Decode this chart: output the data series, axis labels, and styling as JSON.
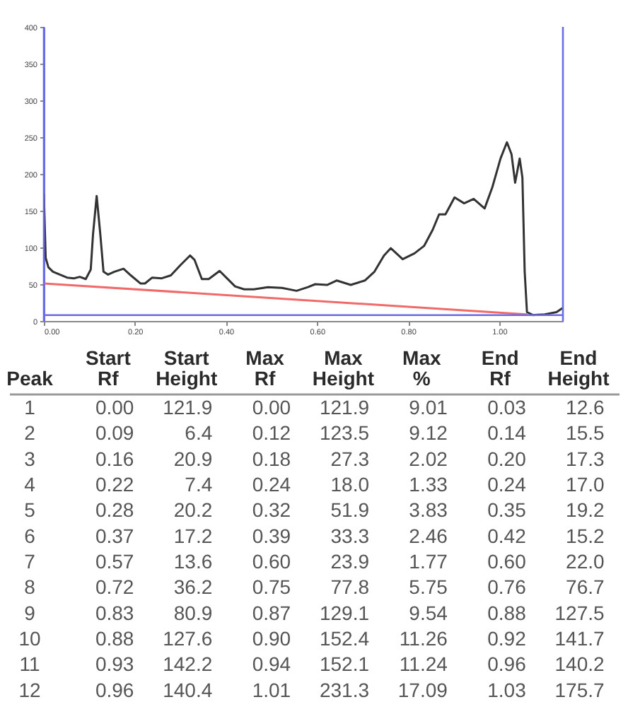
{
  "chart_data": [
    {
      "type": "line",
      "xlim": [
        0,
        1.14
      ],
      "ylim": [
        0,
        400
      ],
      "xticks": [
        {
          "value": 0,
          "label": "0.00"
        },
        {
          "value": 0.2,
          "label": "0.20"
        },
        {
          "value": 0.4,
          "label": "0.40"
        },
        {
          "value": 0.6,
          "label": "0.60"
        },
        {
          "value": 0.8,
          "label": "0.80"
        },
        {
          "value": 1,
          "label": "1.00"
        }
      ],
      "yticks": [
        0,
        50,
        100,
        150,
        200,
        250,
        300,
        350,
        400
      ],
      "series": [
        {
          "color": "#333333",
          "x": [
            0,
            0.004,
            0.01,
            0.02,
            0.035,
            0.051,
            0.066,
            0.079,
            0.092,
            0.103,
            0.108,
            0.116,
            0.124,
            0.131,
            0.141,
            0.155,
            0.175,
            0.191,
            0.212,
            0.222,
            0.238,
            0.259,
            0.279,
            0.3,
            0.321,
            0.331,
            0.347,
            0.362,
            0.386,
            0.399,
            0.42,
            0.44,
            0.461,
            0.492,
            0.523,
            0.555,
            0.58,
            0.596,
            0.622,
            0.643,
            0.674,
            0.705,
            0.726,
            0.747,
            0.762,
            0.788,
            0.814,
            0.835,
            0.854,
            0.868,
            0.882,
            0.902,
            0.923,
            0.944,
            0.968,
            0.985,
            1.003,
            1.017,
            1.027,
            1.035,
            1.045,
            1.051,
            1.056,
            1.061,
            1.074,
            1.1,
            1.126,
            1.138
          ],
          "values": [
            172,
            86,
            73,
            67,
            63,
            59,
            58,
            60,
            57,
            70,
            118,
            170,
            118,
            67,
            63,
            67,
            71,
            62,
            51,
            51,
            59,
            58,
            62,
            76,
            89,
            83,
            57,
            57,
            68,
            60,
            47,
            43,
            43,
            46,
            45,
            41,
            46,
            50,
            49,
            55,
            49,
            55,
            67,
            89,
            99,
            84,
            92,
            102,
            124,
            145,
            145,
            168,
            160,
            166,
            153,
            182,
            221,
            243,
            227,
            188,
            221,
            195,
            67,
            12,
            8,
            9,
            12,
            17
          ]
        },
        {
          "type": "line",
          "color": "#f06a6a",
          "x": [
            0,
            1.06
          ],
          "values": [
            51,
            9
          ]
        }
      ],
      "ref_lines": [
        {
          "axis": "x",
          "value": 0,
          "color": "#6b6be8"
        },
        {
          "axis": "x",
          "value": 1.14,
          "color": "#6b6be8"
        },
        {
          "axis": "y",
          "value": 8,
          "color": "#6b6be8"
        }
      ]
    },
    {
      "type": "heatmap",
      "ylabel": "Peak",
      "categories": [
        "Start Rf",
        "Start Height",
        "Max Rf",
        "Max Height",
        "Max %",
        "End Rf",
        "End Height"
      ],
      "y_categories": [
        "1",
        "2",
        "3",
        "4",
        "5",
        "6",
        "7",
        "8",
        "9",
        "10",
        "11",
        "12"
      ],
      "cells": [
        [
          0.0,
          121.9,
          0.0,
          121.9,
          9.01,
          0.03,
          12.6
        ],
        [
          0.09,
          6.4,
          0.12,
          123.5,
          9.12,
          0.14,
          15.5
        ],
        [
          0.16,
          20.9,
          0.18,
          27.3,
          2.02,
          0.2,
          17.3
        ],
        [
          0.22,
          7.4,
          0.24,
          18.0,
          1.33,
          0.24,
          17.0
        ],
        [
          0.28,
          20.2,
          0.32,
          51.9,
          3.83,
          0.35,
          19.2
        ],
        [
          0.37,
          17.2,
          0.39,
          33.3,
          2.46,
          0.42,
          15.2
        ],
        [
          0.57,
          13.6,
          0.6,
          23.9,
          1.77,
          0.6,
          22.0
        ],
        [
          0.72,
          36.2,
          0.75,
          77.8,
          5.75,
          0.76,
          76.7
        ],
        [
          0.83,
          80.9,
          0.87,
          129.1,
          9.54,
          0.88,
          127.5
        ],
        [
          0.88,
          127.6,
          0.9,
          152.4,
          11.26,
          0.92,
          141.7
        ],
        [
          0.93,
          142.2,
          0.94,
          152.1,
          11.24,
          0.96,
          140.2
        ],
        [
          0.96,
          140.4,
          1.01,
          231.3,
          17.09,
          1.03,
          175.7
        ]
      ],
      "cell_labels": [
        [
          "0.00",
          "121.9",
          "0.00",
          "121.9",
          "9.01",
          "0.03",
          "12.6"
        ],
        [
          "0.09",
          "6.4",
          "0.12",
          "123.5",
          "9.12",
          "0.14",
          "15.5"
        ],
        [
          "0.16",
          "20.9",
          "0.18",
          "27.3",
          "2.02",
          "0.20",
          "17.3"
        ],
        [
          "0.22",
          "7.4",
          "0.24",
          "18.0",
          "1.33",
          "0.24",
          "17.0"
        ],
        [
          "0.28",
          "20.2",
          "0.32",
          "51.9",
          "3.83",
          "0.35",
          "19.2"
        ],
        [
          "0.37",
          "17.2",
          "0.39",
          "33.3",
          "2.46",
          "0.42",
          "15.2"
        ],
        [
          "0.57",
          "13.6",
          "0.60",
          "23.9",
          "1.77",
          "0.60",
          "22.0"
        ],
        [
          "0.72",
          "36.2",
          "0.75",
          "77.8",
          "5.75",
          "0.76",
          "76.7"
        ],
        [
          "0.83",
          "80.9",
          "0.87",
          "129.1",
          "9.54",
          "0.88",
          "127.5"
        ],
        [
          "0.88",
          "127.6",
          "0.90",
          "152.4",
          "11.26",
          "0.92",
          "141.7"
        ],
        [
          "0.93",
          "142.2",
          "0.94",
          "152.1",
          "11.24",
          "0.96",
          "140.2"
        ],
        [
          "0.96",
          "140.4",
          "1.01",
          "231.3",
          "17.09",
          "1.03",
          "175.7"
        ]
      ]
    }
  ]
}
